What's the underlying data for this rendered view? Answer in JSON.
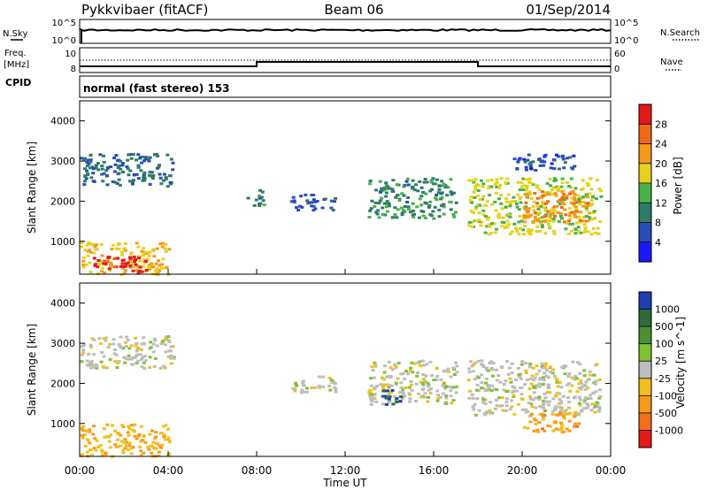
{
  "header": {
    "station": "Pykkvibaer (fitACF)",
    "beam": "Beam 06",
    "date": "01/Sep/2014"
  },
  "panel_labels": {
    "nsky": "N.Sky",
    "nsearch": "N.Search",
    "freq": "Freq.",
    "freq_unit": "[MHz]",
    "nave": "Nave",
    "cpid": "CPID",
    "cpid_value": "normal (fast stereo) 153"
  },
  "noise_ticks": {
    "left": [
      "10^5",
      "10^0"
    ],
    "right": [
      "10^5",
      "10^0"
    ]
  },
  "freq_ticks": {
    "left": [
      "10",
      "8"
    ],
    "right": [
      "60",
      "0"
    ]
  },
  "x_ticks": [
    "00:00",
    "04:00",
    "08:00",
    "12:00",
    "16:00",
    "20:00",
    "00:00"
  ],
  "x_label": "Time UT",
  "y_label": "Slant Range [km]",
  "y_ticks": [
    "1000",
    "2000",
    "3000",
    "4000"
  ],
  "power_colorbar": {
    "label": "Power [dB]",
    "ticks": [
      "4",
      "8",
      "12",
      "16",
      "20",
      "24",
      "28"
    ],
    "colors": [
      "#1a1aff",
      "#2a4db8",
      "#2f7a68",
      "#48b24a",
      "#e6d21e",
      "#f39a1c",
      "#f06a15",
      "#e31a1c"
    ]
  },
  "velocity_colorbar": {
    "label": "Velocity [m s^-1]",
    "ticks": [
      "1000",
      "500",
      "100",
      "25",
      "-25",
      "-100",
      "-500",
      "-1000"
    ],
    "colors": [
      "#1e3fae",
      "#2f6a3c",
      "#4d8f33",
      "#7fc232",
      "#bdbdbd",
      "#f0c01e",
      "#f59a1c",
      "#f36f1a",
      "#e31a1c"
    ]
  },
  "chart_data": [
    {
      "type": "heatmap",
      "name": "power",
      "xlabel": "Time UT",
      "ylabel": "Slant Range [km]",
      "xlim": [
        0,
        24
      ],
      "ylim": [
        180,
        4500
      ],
      "zlabel": "Power [dB]",
      "zlim": [
        0,
        30
      ],
      "regions": [
        {
          "t0": 0.0,
          "t1": 4.0,
          "r0": 200,
          "r1": 1000,
          "value": 18
        },
        {
          "t0": 0.5,
          "t1": 3.0,
          "r0": 250,
          "r1": 650,
          "value": 28
        },
        {
          "t0": 0.0,
          "t1": 4.2,
          "r0": 2400,
          "r1": 3200,
          "value": 8
        },
        {
          "t0": 7.5,
          "t1": 8.3,
          "r0": 1900,
          "r1": 2300,
          "value": 10
        },
        {
          "t0": 9.5,
          "t1": 11.5,
          "r0": 1800,
          "r1": 2200,
          "value": 6
        },
        {
          "t0": 13.0,
          "t1": 17.0,
          "r0": 1600,
          "r1": 2600,
          "value": 10
        },
        {
          "t0": 17.5,
          "t1": 23.5,
          "r0": 1200,
          "r1": 2600,
          "value": 16
        },
        {
          "t0": 20.0,
          "t1": 23.0,
          "r0": 1500,
          "r1": 2300,
          "value": 22
        },
        {
          "t0": 19.5,
          "t1": 22.5,
          "r0": 2800,
          "r1": 3200,
          "value": 6
        }
      ]
    },
    {
      "type": "heatmap",
      "name": "velocity",
      "xlabel": "Time UT",
      "ylabel": "Slant Range [km]",
      "xlim": [
        0,
        24
      ],
      "ylim": [
        180,
        4500
      ],
      "zlabel": "Velocity [m s^-1]",
      "zlim": [
        -1000,
        1000
      ],
      "regions": [
        {
          "t0": 0.0,
          "t1": 4.0,
          "r0": 200,
          "r1": 1000,
          "value": -300
        },
        {
          "t0": 0.0,
          "t1": 4.2,
          "r0": 2400,
          "r1": 3200,
          "value": 0
        },
        {
          "t0": 9.5,
          "t1": 11.5,
          "r0": 1800,
          "r1": 2200,
          "value": 0
        },
        {
          "t0": 13.0,
          "t1": 17.0,
          "r0": 1500,
          "r1": 2600,
          "value": 0
        },
        {
          "t0": 13.5,
          "t1": 14.5,
          "r0": 1500,
          "r1": 1900,
          "value": 800
        },
        {
          "t0": 17.5,
          "t1": 23.5,
          "r0": 1200,
          "r1": 2600,
          "value": 0
        },
        {
          "t0": 20.0,
          "t1": 22.5,
          "r0": 800,
          "r1": 1300,
          "value": -400
        }
      ]
    }
  ]
}
